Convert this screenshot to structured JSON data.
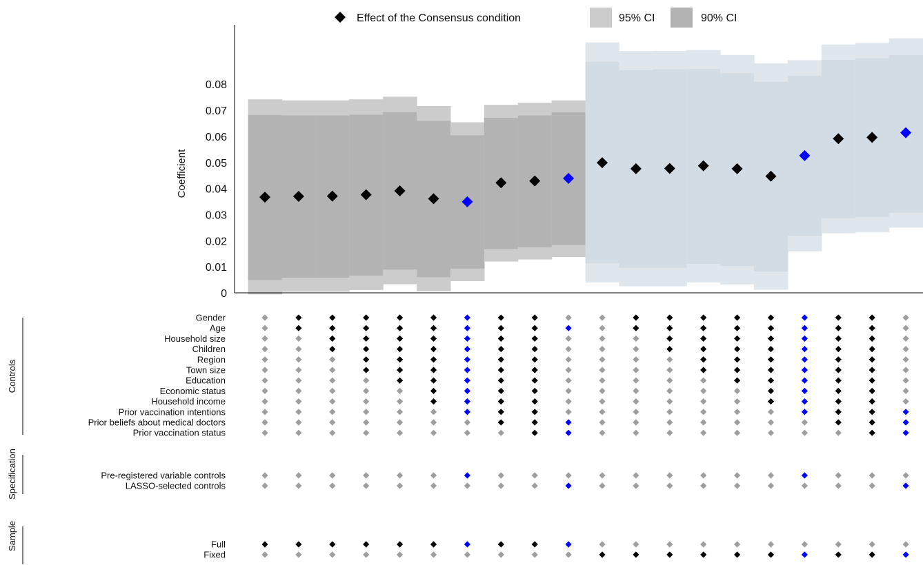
{
  "chart_data": {
    "type": "scatter",
    "ylabel": "Coefficient",
    "yticks": [
      0,
      0.01,
      0.02,
      0.03,
      0.04,
      0.05,
      0.06,
      0.07,
      0.08
    ],
    "ytick_labels": [
      "0",
      "0.01",
      "0.02",
      "0.03",
      "0.04",
      "0.05",
      "0.06",
      "0.07",
      "0.08"
    ],
    "ylim": [
      -0.001,
      0.1
    ],
    "legend": {
      "placement": "top",
      "point_label": "Effect of the Consensus condition",
      "ci95_label": "95% CI",
      "ci90_label": "90% CI"
    },
    "colors": {
      "point": "#000000",
      "highlight": "#0000ff",
      "ci95_full": "#cccccc",
      "ci90_full": "#b3b3b3",
      "ci95_fixed": "#dfe7ec",
      "ci90_fixed": "#d2dce4",
      "indicator_on": "#000000",
      "indicator_off": "#9e9e9e"
    },
    "specifications": [
      {
        "coef": 0.0367,
        "ci95": [
          -0.0006,
          0.0742
        ],
        "ci90": [
          0.0049,
          0.0682
        ],
        "highlight": false
      },
      {
        "coef": 0.037,
        "ci95": [
          0.0004,
          0.0738
        ],
        "ci90": [
          0.0058,
          0.068
        ],
        "highlight": false
      },
      {
        "coef": 0.0371,
        "ci95": [
          0.0004,
          0.0738
        ],
        "ci90": [
          0.0058,
          0.068
        ],
        "highlight": false
      },
      {
        "coef": 0.0376,
        "ci95": [
          0.0011,
          0.0742
        ],
        "ci90": [
          0.0066,
          0.0683
        ],
        "highlight": false
      },
      {
        "coef": 0.0391,
        "ci95": [
          0.0033,
          0.0752
        ],
        "ci90": [
          0.0089,
          0.0693
        ],
        "highlight": false
      },
      {
        "coef": 0.0361,
        "ci95": [
          0.0006,
          0.0716
        ],
        "ci90": [
          0.006,
          0.0659
        ],
        "highlight": false
      },
      {
        "coef": 0.0349,
        "ci95": [
          0.0045,
          0.0654
        ],
        "ci90": [
          0.0093,
          0.0604
        ],
        "highlight": true
      },
      {
        "coef": 0.0422,
        "ci95": [
          0.012,
          0.0721
        ],
        "ci90": [
          0.0168,
          0.0671
        ],
        "highlight": false
      },
      {
        "coef": 0.0429,
        "ci95": [
          0.0128,
          0.0729
        ],
        "ci90": [
          0.0175,
          0.068
        ],
        "highlight": false
      },
      {
        "coef": 0.0439,
        "ci95": [
          0.0137,
          0.0738
        ],
        "ci90": [
          0.0183,
          0.0692
        ],
        "highlight": true
      },
      {
        "coef": 0.0499,
        "ci95": [
          0.004,
          0.096
        ],
        "ci90": [
          0.0113,
          0.0886
        ],
        "highlight": false
      },
      {
        "coef": 0.0476,
        "ci95": [
          0.0025,
          0.0927
        ],
        "ci90": [
          0.0096,
          0.0854
        ],
        "highlight": false
      },
      {
        "coef": 0.0477,
        "ci95": [
          0.0025,
          0.0928
        ],
        "ci90": [
          0.0096,
          0.0857
        ],
        "highlight": false
      },
      {
        "coef": 0.0487,
        "ci95": [
          0.004,
          0.0931
        ],
        "ci90": [
          0.0111,
          0.0858
        ],
        "highlight": false
      },
      {
        "coef": 0.0476,
        "ci95": [
          0.0032,
          0.0912
        ],
        "ci90": [
          0.0103,
          0.0842
        ],
        "highlight": false
      },
      {
        "coef": 0.0447,
        "ci95": [
          0.0012,
          0.088
        ],
        "ci90": [
          0.0082,
          0.0809
        ],
        "highlight": false
      },
      {
        "coef": 0.0526,
        "ci95": [
          0.0159,
          0.0892
        ],
        "ci90": [
          0.0218,
          0.0832
        ],
        "highlight": true
      },
      {
        "coef": 0.0591,
        "ci95": [
          0.0228,
          0.0952
        ],
        "ci90": [
          0.0285,
          0.0893
        ],
        "highlight": false
      },
      {
        "coef": 0.0596,
        "ci95": [
          0.0233,
          0.0958
        ],
        "ci90": [
          0.0291,
          0.09
        ],
        "highlight": false
      },
      {
        "coef": 0.0614,
        "ci95": [
          0.025,
          0.0976
        ],
        "ci90": [
          0.0307,
          0.0912
        ],
        "highlight": true
      }
    ],
    "indicator_groups": [
      {
        "label": "Controls",
        "rows": [
          {
            "label": "Gender",
            "on": [
              0,
              1,
              1,
              1,
              1,
              1,
              1,
              1,
              1,
              0,
              0,
              1,
              1,
              1,
              1,
              1,
              1,
              1,
              1,
              0
            ]
          },
          {
            "label": "Age",
            "on": [
              0,
              1,
              1,
              1,
              1,
              1,
              1,
              1,
              1,
              1,
              0,
              1,
              1,
              1,
              1,
              1,
              1,
              1,
              1,
              0
            ]
          },
          {
            "label": "Household size",
            "on": [
              0,
              0,
              1,
              1,
              1,
              1,
              1,
              1,
              1,
              0,
              0,
              0,
              1,
              1,
              1,
              1,
              1,
              1,
              1,
              0
            ]
          },
          {
            "label": "Children",
            "on": [
              0,
              0,
              1,
              1,
              1,
              1,
              1,
              1,
              1,
              0,
              0,
              0,
              1,
              1,
              1,
              1,
              1,
              1,
              1,
              0
            ]
          },
          {
            "label": "Region",
            "on": [
              0,
              0,
              0,
              1,
              1,
              1,
              1,
              1,
              1,
              0,
              0,
              0,
              0,
              1,
              1,
              1,
              1,
              1,
              1,
              0
            ]
          },
          {
            "label": "Town size",
            "on": [
              0,
              0,
              0,
              1,
              1,
              1,
              1,
              1,
              1,
              0,
              0,
              0,
              0,
              1,
              1,
              1,
              1,
              1,
              1,
              0
            ]
          },
          {
            "label": "Education",
            "on": [
              0,
              0,
              0,
              0,
              1,
              1,
              1,
              1,
              1,
              0,
              0,
              0,
              0,
              0,
              1,
              1,
              1,
              1,
              1,
              0
            ]
          },
          {
            "label": "Economic status",
            "on": [
              0,
              0,
              0,
              0,
              0,
              1,
              1,
              1,
              1,
              0,
              0,
              0,
              0,
              0,
              0,
              1,
              1,
              1,
              1,
              0
            ]
          },
          {
            "label": "Household income",
            "on": [
              0,
              0,
              0,
              0,
              0,
              1,
              1,
              1,
              1,
              0,
              0,
              0,
              0,
              0,
              0,
              1,
              1,
              1,
              1,
              0
            ]
          },
          {
            "label": "Prior vaccination intentions",
            "on": [
              0,
              0,
              0,
              0,
              0,
              0,
              1,
              1,
              1,
              0,
              0,
              0,
              0,
              0,
              0,
              0,
              1,
              1,
              1,
              1
            ]
          },
          {
            "label": "Prior beliefs about medical doctors",
            "on": [
              0,
              0,
              0,
              0,
              0,
              0,
              0,
              1,
              1,
              1,
              0,
              0,
              0,
              0,
              0,
              0,
              0,
              1,
              1,
              1
            ]
          },
          {
            "label": "Prior vaccination status",
            "on": [
              0,
              0,
              0,
              0,
              0,
              0,
              0,
              0,
              1,
              1,
              0,
              0,
              0,
              0,
              0,
              0,
              0,
              0,
              1,
              1
            ]
          }
        ]
      },
      {
        "label": "Specification",
        "rows": [
          {
            "label": "Pre-registered variable controls",
            "on": [
              0,
              0,
              0,
              0,
              0,
              0,
              1,
              0,
              0,
              0,
              0,
              0,
              0,
              0,
              0,
              0,
              1,
              0,
              0,
              0
            ]
          },
          {
            "label": "LASSO-selected controls",
            "on": [
              0,
              0,
              0,
              0,
              0,
              0,
              0,
              0,
              0,
              1,
              0,
              0,
              0,
              0,
              0,
              0,
              0,
              0,
              0,
              1
            ]
          }
        ]
      },
      {
        "label": "Sample",
        "rows": [
          {
            "label": "Full",
            "on": [
              1,
              1,
              1,
              1,
              1,
              1,
              1,
              1,
              1,
              1,
              0,
              0,
              0,
              0,
              0,
              0,
              0,
              0,
              0,
              0
            ]
          },
          {
            "label": "Fixed",
            "on": [
              0,
              0,
              0,
              0,
              0,
              0,
              0,
              0,
              0,
              0,
              1,
              1,
              1,
              1,
              1,
              1,
              1,
              1,
              1,
              1
            ]
          }
        ]
      }
    ]
  }
}
